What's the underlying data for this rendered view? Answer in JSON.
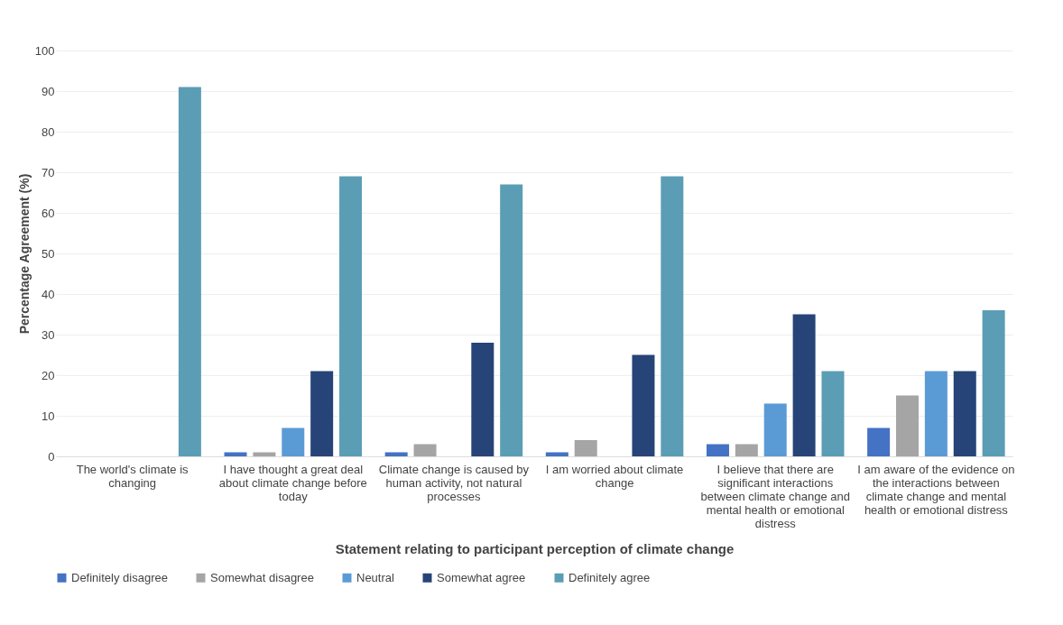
{
  "chart_data": {
    "type": "bar",
    "xlabel": "Statement relating to participant perception of climate change",
    "ylabel": "Percentage Agreement (%)",
    "categories": [
      "The world's climate is changing",
      "I have thought a great deal about climate change before today",
      "Climate change is caused by human activity, not natural processes",
      "I am worried about climate change",
      "I believe that there are significant interactions between climate change and mental health or emotional distress",
      "I am aware of the evidence on the interactions between climate change and mental health or emotional distress"
    ],
    "series": [
      {
        "name": "Definitely disagree",
        "color": "#4472c4",
        "values": [
          0,
          1,
          1,
          1,
          3,
          7
        ]
      },
      {
        "name": "Somewhat disagree",
        "color": "#a5a5a5",
        "values": [
          0,
          1,
          3,
          4,
          3,
          15
        ]
      },
      {
        "name": "Neutral",
        "color": "#5b9bd5",
        "values": [
          0,
          7,
          0,
          0,
          13,
          21
        ]
      },
      {
        "name": "Somewhat agree",
        "color": "#264478",
        "values": [
          0,
          21,
          28,
          25,
          35,
          21
        ]
      },
      {
        "name": "Definitely agree",
        "color": "#5b9db5",
        "values": [
          91,
          69,
          67,
          69,
          21,
          36
        ]
      }
    ],
    "ylim": [
      0,
      100
    ],
    "yticks": [
      0,
      10,
      20,
      30,
      40,
      50,
      60,
      70,
      80,
      90,
      100
    ],
    "grid": "y",
    "legend": "bottom"
  }
}
